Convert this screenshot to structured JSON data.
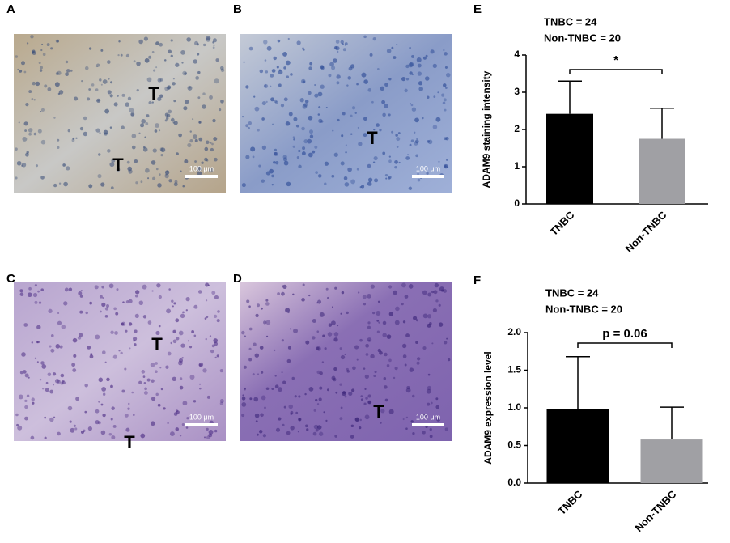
{
  "panels": [
    {
      "label": "A",
      "markers": [
        "T",
        "T"
      ],
      "scale_bar": "100 μm"
    },
    {
      "label": "B",
      "markers": [
        "T"
      ],
      "scale_bar": "100 μm"
    },
    {
      "label": "C",
      "markers": [
        "T",
        "T"
      ],
      "scale_bar": "100 μm"
    },
    {
      "label": "D",
      "markers": [
        "T"
      ],
      "scale_bar": "100 μm"
    }
  ],
  "chart_data": [
    {
      "type": "bar",
      "panel_label": "E",
      "counts": [
        "TNBC = 24",
        "Non-TNBC = 20"
      ],
      "y_label": "ADAM9 staining intensity",
      "categories": [
        "TNBC",
        "Non-TNBC"
      ],
      "values": [
        2.42,
        1.75
      ],
      "errors": [
        0.88,
        0.82
      ],
      "colors": [
        "#000000",
        "#a0a0a4"
      ],
      "ylim": [
        0,
        4
      ],
      "yticks": [
        0,
        1,
        2,
        3,
        4
      ],
      "annotation": "*"
    },
    {
      "type": "bar",
      "panel_label": "F",
      "counts": [
        "TNBC = 24",
        "Non-TNBC = 20"
      ],
      "y_label": "ADAM9 expression level",
      "categories": [
        "TNBC",
        "Non-TNBC"
      ],
      "values": [
        0.98,
        0.58
      ],
      "errors": [
        0.7,
        0.43
      ],
      "colors": [
        "#000000",
        "#a0a0a4"
      ],
      "ylim": [
        0,
        2
      ],
      "yticks": [
        {
          "value": 0,
          "label": "0.0"
        },
        0.5,
        {
          "value": 1,
          "label": "1.0"
        },
        1.5,
        {
          "value": 2,
          "label": "2.0"
        }
      ],
      "annotation": "p = 0.06"
    }
  ]
}
